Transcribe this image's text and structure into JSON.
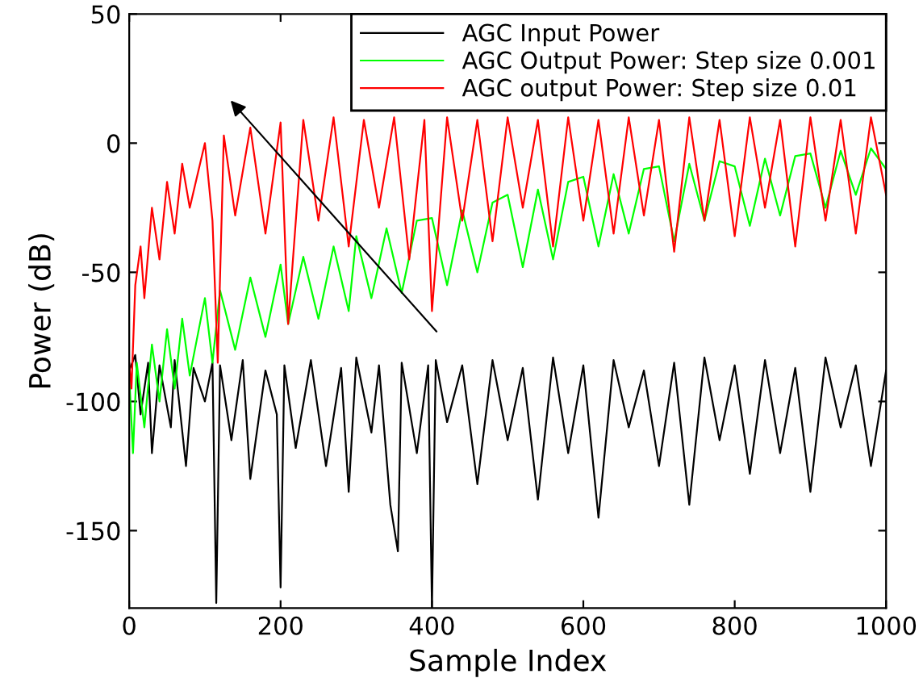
{
  "chart_data": {
    "type": "line",
    "xlabel": "Sample Index",
    "ylabel": "Power (dB)",
    "xlim": [
      0,
      1000
    ],
    "ylim": [
      -180,
      50
    ],
    "xticks": [
      0,
      200,
      400,
      600,
      800,
      1000
    ],
    "yticks": [
      -150,
      -100,
      -50,
      0,
      50
    ],
    "grid": false,
    "legend": "top right",
    "series": [
      {
        "name": "AGC Input Power",
        "color": "#000000",
        "x": [
          0,
          8,
          15,
          25,
          30,
          40,
          55,
          60,
          75,
          85,
          100,
          110,
          115,
          120,
          135,
          150,
          160,
          180,
          195,
          200,
          205,
          220,
          240,
          260,
          280,
          290,
          300,
          320,
          330,
          345,
          355,
          360,
          380,
          395,
          400,
          405,
          420,
          440,
          460,
          480,
          500,
          520,
          540,
          560,
          580,
          600,
          620,
          640,
          660,
          680,
          700,
          720,
          740,
          760,
          780,
          800,
          820,
          840,
          860,
          880,
          900,
          920,
          940,
          960,
          980,
          1000
        ],
        "values": [
          -88,
          -82,
          -105,
          -85,
          -120,
          -86,
          -110,
          -84,
          -125,
          -87,
          -100,
          -85,
          -178,
          -86,
          -115,
          -84,
          -130,
          -88,
          -105,
          -172,
          -86,
          -118,
          -84,
          -125,
          -87,
          -135,
          -83,
          -112,
          -86,
          -140,
          -158,
          -85,
          -120,
          -86,
          -180,
          -84,
          -108,
          -86,
          -132,
          -84,
          -115,
          -87,
          -138,
          -83,
          -120,
          -86,
          -145,
          -84,
          -110,
          -88,
          -125,
          -85,
          -140,
          -83,
          -115,
          -86,
          -128,
          -84,
          -120,
          -87,
          -135,
          -83,
          -110,
          -86,
          -125,
          -88
        ]
      },
      {
        "name": "AGC Output Power: Step size 0.001",
        "color": "#00ff00",
        "x": [
          0,
          5,
          10,
          20,
          30,
          40,
          50,
          60,
          70,
          80,
          100,
          110,
          120,
          140,
          160,
          180,
          200,
          210,
          230,
          250,
          270,
          290,
          300,
          320,
          340,
          360,
          380,
          400,
          420,
          440,
          460,
          480,
          500,
          520,
          540,
          560,
          580,
          600,
          620,
          640,
          660,
          680,
          700,
          720,
          740,
          760,
          780,
          800,
          820,
          840,
          860,
          880,
          900,
          920,
          940,
          960,
          980,
          1000
        ],
        "values": [
          -90,
          -120,
          -85,
          -110,
          -78,
          -100,
          -72,
          -95,
          -68,
          -90,
          -60,
          -85,
          -57,
          -80,
          -52,
          -75,
          -47,
          -70,
          -44,
          -68,
          -40,
          -65,
          -36,
          -60,
          -33,
          -58,
          -30,
          -29,
          -55,
          -26,
          -50,
          -23,
          -20,
          -48,
          -18,
          -45,
          -15,
          -13,
          -40,
          -12,
          -35,
          -10,
          -9,
          -38,
          -8,
          -30,
          -7,
          -9,
          -32,
          -6,
          -28,
          -5,
          -4,
          -25,
          -3,
          -20,
          -2,
          -10
        ]
      },
      {
        "name": "AGC output Power: Step size 0.01",
        "color": "#ff0000",
        "x": [
          0,
          3,
          8,
          15,
          20,
          30,
          40,
          50,
          60,
          70,
          80,
          100,
          110,
          117,
          125,
          140,
          160,
          180,
          200,
          210,
          230,
          250,
          270,
          290,
          310,
          330,
          350,
          370,
          390,
          400,
          420,
          440,
          460,
          480,
          500,
          520,
          540,
          560,
          580,
          600,
          620,
          640,
          660,
          680,
          700,
          720,
          740,
          760,
          780,
          800,
          820,
          840,
          860,
          880,
          900,
          920,
          940,
          960,
          980,
          1000
        ],
        "values": [
          -85,
          -95,
          -55,
          -40,
          -60,
          -25,
          -45,
          -15,
          -35,
          -8,
          -25,
          0,
          -30,
          -85,
          3,
          -28,
          6,
          -35,
          8,
          -70,
          9,
          -30,
          10,
          -40,
          9,
          -25,
          10,
          -45,
          9,
          -65,
          10,
          -30,
          9,
          -38,
          10,
          -25,
          9,
          -40,
          10,
          -30,
          9,
          -35,
          10,
          -28,
          9,
          -42,
          10,
          -30,
          9,
          -36,
          10,
          -25,
          9,
          -40,
          10,
          -30,
          9,
          -35,
          10,
          -20
        ]
      }
    ]
  }
}
